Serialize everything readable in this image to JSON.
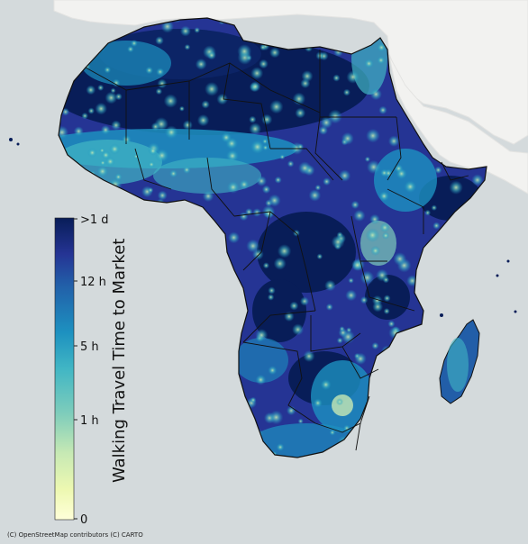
{
  "map": {
    "basemap_attribution": "(C) OpenStreetMap contributors (C) CARTO",
    "ocean_color": "#d4dadc",
    "land_color": "#f2f2f0",
    "border_color": "#111111",
    "colorbar": {
      "title": "Walking Travel Time to Market",
      "ticks": [
        ">1 d",
        "12 h",
        "5 h",
        "1 h",
        "0"
      ],
      "colors": [
        "#081d58",
        "#253494",
        "#225ea8",
        "#1d91c0",
        "#41b6c4",
        "#7fcdbb",
        "#c7e9b4",
        "#edf8b1",
        "#ffffd9"
      ]
    }
  }
}
